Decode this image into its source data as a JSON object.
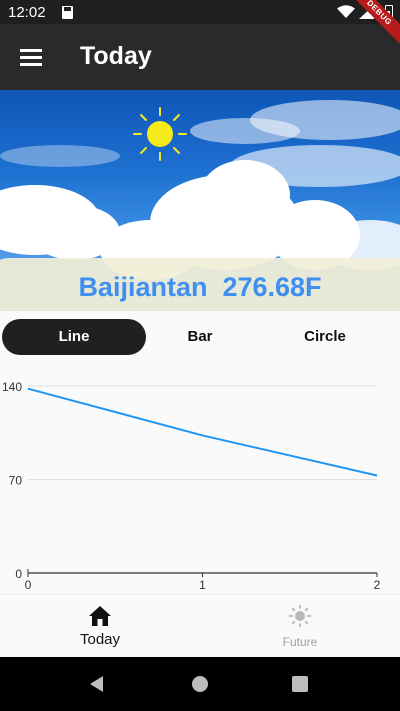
{
  "status_bar": {
    "time": "12:02",
    "debug_banner": "DEBUG"
  },
  "app_bar": {
    "title": "Today"
  },
  "weather": {
    "city": "Baijiantan",
    "temperature": "276.68F",
    "display": "Baijiantan  276.68F"
  },
  "chart_tabs": [
    {
      "label": "Line",
      "active": true
    },
    {
      "label": "Bar",
      "active": false
    },
    {
      "label": "Circle",
      "active": false
    }
  ],
  "chart_data": {
    "type": "line",
    "x": [
      0,
      1,
      2
    ],
    "values": [
      138,
      103,
      73
    ],
    "xlabel": "",
    "ylabel": "",
    "xlim": [
      0,
      2
    ],
    "ylim": [
      0,
      140
    ],
    "y_ticks": [
      "140",
      "70",
      "0"
    ],
    "x_ticks": [
      "0",
      "1",
      "2"
    ],
    "grid": true,
    "line_color": "#2196f3"
  },
  "bottom_nav": [
    {
      "label": "Today",
      "icon": "home-icon",
      "active": true
    },
    {
      "label": "Future",
      "icon": "sun-icon",
      "active": false
    }
  ],
  "colors": {
    "accent": "#3f8ff2",
    "app_bar": "#2a2a2a",
    "active_tab": "#202020"
  }
}
